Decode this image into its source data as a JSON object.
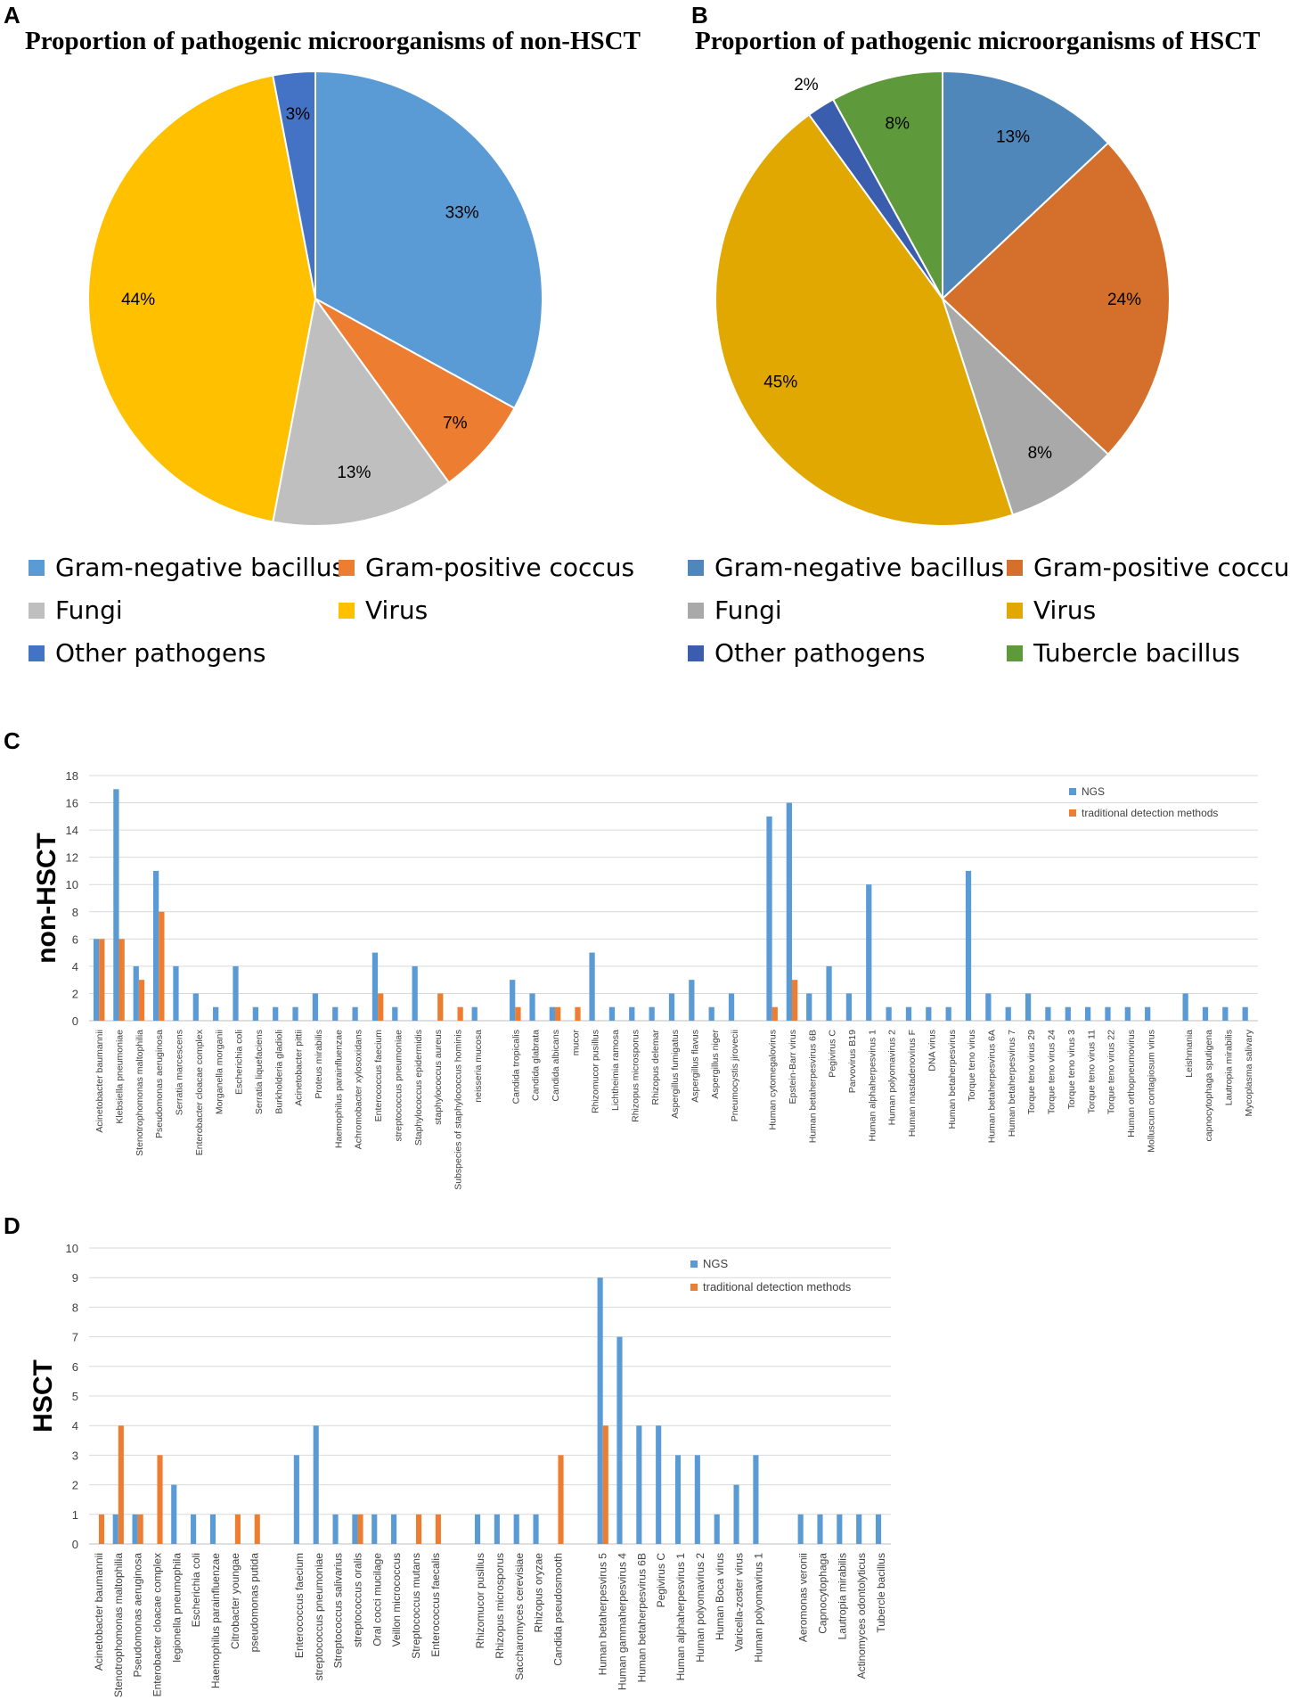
{
  "panels": {
    "a": "A",
    "b": "B",
    "c": "C",
    "d": "D"
  },
  "chart_data": [
    {
      "id": "A",
      "type": "pie",
      "title": "Proportion of pathogenic microorganisms of non-HSCT",
      "slices": [
        {
          "label": "Gram-negative bacillus",
          "value": 33,
          "display": "33%",
          "color": "#5B9BD5"
        },
        {
          "label": "Gram-positive coccus",
          "value": 7,
          "display": "7%",
          "color": "#ED7D31"
        },
        {
          "label": "Fungi",
          "value": 13,
          "display": "13%",
          "color": "#BFBFBF"
        },
        {
          "label": "Virus",
          "value": 44,
          "display": "44%",
          "color": "#FFC000"
        },
        {
          "label": "Other pathogens",
          "value": 3,
          "display": "3%",
          "color": "#4472C4"
        }
      ],
      "legend": [
        {
          "label": "Gram-negative bacillus",
          "color": "#5B9BD5"
        },
        {
          "label": "Gram-positive coccus",
          "color": "#ED7D31"
        },
        {
          "label": "Fungi",
          "color": "#BFBFBF"
        },
        {
          "label": "Virus",
          "color": "#FFC000"
        },
        {
          "label": "Other pathogens",
          "color": "#4472C4"
        }
      ]
    },
    {
      "id": "B",
      "type": "pie",
      "title": "Proportion of pathogenic microorganisms of HSCT",
      "slices": [
        {
          "label": "Gram-negative bacillus",
          "value": 13,
          "display": "13%",
          "color": "#4F87BB"
        },
        {
          "label": "Gram-positive coccus",
          "value": 24,
          "display": "24%",
          "color": "#D4702C"
        },
        {
          "label": "Fungi",
          "value": 8,
          "display": "8%",
          "color": "#A9A9A9"
        },
        {
          "label": "Virus",
          "value": 45,
          "display": "45%",
          "color": "#E0A800"
        },
        {
          "label": "Other pathogens",
          "value": 2,
          "display": "2%",
          "color": "#3A5DAE"
        },
        {
          "label": "Tubercle bacillus",
          "value": 8,
          "display": "8%",
          "color": "#5E9A3C"
        }
      ],
      "legend": [
        {
          "label": "Gram-negative bacillus",
          "color": "#4F87BB"
        },
        {
          "label": "Gram-positive coccus",
          "color": "#D4702C"
        },
        {
          "label": "Fungi",
          "color": "#A9A9A9"
        },
        {
          "label": "Virus",
          "color": "#E0A800"
        },
        {
          "label": "Other pathogens",
          "color": "#3A5DAE"
        },
        {
          "label": "Tubercle bacillus",
          "color": "#5E9A3C"
        }
      ]
    },
    {
      "id": "C",
      "type": "bar",
      "ylabel": "non-HSCT",
      "ylim": [
        0,
        18
      ],
      "yticks": [
        0,
        2,
        4,
        6,
        8,
        10,
        12,
        14,
        16,
        18
      ],
      "series_names": [
        "NGS",
        "traditional detection methods"
      ],
      "series_colors": [
        "#5B9BD5",
        "#ED7D31"
      ],
      "legend_position": "top-right",
      "groups": [
        {
          "items": [
            [
              "Acinetobacter baumannii",
              6,
              6
            ],
            [
              "Klebsiella pneumoniae",
              17,
              6
            ],
            [
              "Stenotrophomonas maltophilia",
              4,
              3
            ],
            [
              "Pseudomonas aeruginosa",
              11,
              8
            ],
            [
              "Serratia marcescens",
              4,
              0
            ],
            [
              "Enterobacter cloacae complex",
              2,
              0
            ],
            [
              "Morganella morganii",
              1,
              0
            ],
            [
              "Escherichia coli",
              4,
              0
            ],
            [
              "Serratia liquefaciens",
              1,
              0
            ],
            [
              "Burkholderia gladioli",
              1,
              0
            ],
            [
              "Acinetobacter pittii",
              1,
              0
            ],
            [
              "Proteus mirabilis",
              2,
              0
            ],
            [
              "Haemophilus parainfluenzae",
              1,
              0
            ],
            [
              "Achromobacter xylosoxidans",
              1,
              0
            ],
            [
              "Enterococcus faecium",
              5,
              2
            ],
            [
              "streptococcus pneumoniae",
              1,
              0
            ],
            [
              "Staphylococcus epidermidis",
              4,
              0
            ],
            [
              "staphylococcus aureus",
              0,
              2
            ],
            [
              "Subspecies of staphylococcus hominis",
              0,
              1
            ],
            [
              "neisseria mucosa",
              1,
              0
            ]
          ]
        },
        {
          "items": [
            [
              "Candida tropicalis",
              3,
              1
            ],
            [
              "Candida glabrata",
              2,
              0
            ],
            [
              "Candida albicans",
              1,
              1
            ],
            [
              "mucor",
              0,
              1
            ],
            [
              "Rhizomucor pusillus",
              5,
              0
            ],
            [
              "Lichtheimia ramosa",
              1,
              0
            ],
            [
              "Rhizopus microsporus",
              1,
              0
            ],
            [
              "Rhizopus delemar",
              1,
              0
            ],
            [
              "Aspergillus fumigatus",
              2,
              0
            ],
            [
              "Aspergillus flavus",
              3,
              0
            ],
            [
              "Aspergillus niger",
              1,
              0
            ],
            [
              "Pneumocystis jirovecii",
              2,
              0
            ]
          ]
        },
        {
          "items": [
            [
              "Human cytomegalovirus",
              15,
              1
            ],
            [
              "Epstein-Barr virus",
              16,
              3
            ],
            [
              "Human betaherpesvirus 6B",
              2,
              0
            ],
            [
              "Pegivirus C",
              4,
              0
            ],
            [
              "Parvovirus B19",
              2,
              0
            ],
            [
              "Human alphaherpesvirus 1",
              10,
              0
            ],
            [
              "Human polyomavirus 2",
              1,
              0
            ],
            [
              "Human mastadenovirus F",
              1,
              0
            ],
            [
              "DNA virus",
              1,
              0
            ],
            [
              "Human betaherpesvirus",
              1,
              0
            ],
            [
              "Torque teno virus",
              11,
              0
            ],
            [
              "Human betaherpesvirus 6A",
              2,
              0
            ],
            [
              "Human betaherpesvirus 7",
              1,
              0
            ],
            [
              "Torque teno virus 29",
              2,
              0
            ],
            [
              "Torque teno virus 24",
              1,
              0
            ],
            [
              "Torque teno virus 3",
              1,
              0
            ],
            [
              "Torque teno virus 11",
              1,
              0
            ],
            [
              "Torque teno virus 22",
              1,
              0
            ],
            [
              "Human orthopneumovirus",
              1,
              0
            ],
            [
              "Molluscum contagiosum virus",
              1,
              0
            ]
          ]
        },
        {
          "items": [
            [
              "Leishmania",
              2,
              0
            ],
            [
              "capnocytophaga sputigena",
              1,
              0
            ],
            [
              "Lautropia mirabilis",
              1,
              0
            ],
            [
              "Mycoplasma salivary",
              1,
              0
            ]
          ]
        }
      ]
    },
    {
      "id": "D",
      "type": "bar",
      "ylabel": "HSCT",
      "ylim": [
        0,
        10
      ],
      "yticks": [
        0,
        1,
        2,
        3,
        4,
        5,
        6,
        7,
        8,
        9,
        10
      ],
      "series_names": [
        "NGS",
        "traditional detection methods"
      ],
      "series_colors": [
        "#5B9BD5",
        "#ED7D31"
      ],
      "legend_position": "top-center",
      "groups": [
        {
          "items": [
            [
              "Acinetobacter baumannii",
              0,
              1
            ],
            [
              "Stenotrophomonas maltophilia",
              1,
              4
            ],
            [
              "Pseudomonas aeruginosa",
              1,
              1
            ],
            [
              "Enterobacter cloacae complex",
              0,
              3
            ],
            [
              "legionella pneumophila",
              2,
              0
            ],
            [
              "Escherichia coli",
              1,
              0
            ],
            [
              "Haemophilus parainfluenzae",
              1,
              0
            ],
            [
              "Citrobacter youngae",
              0,
              1
            ],
            [
              "pseudomonas putida",
              0,
              1
            ]
          ]
        },
        {
          "items": [
            [
              "Enterococcus faecium",
              3,
              0
            ],
            [
              "streptococcus pneumoniae",
              4,
              0
            ],
            [
              "Streptococcus salivarius",
              1,
              0
            ],
            [
              "streptococcus oralis",
              1,
              1
            ],
            [
              "Oral cocci mucilage",
              1,
              0
            ],
            [
              "Veillon micrococcus",
              1,
              0
            ],
            [
              "Streptococcus mutans",
              0,
              1
            ],
            [
              "Enterococcus faecalis",
              0,
              1
            ]
          ]
        },
        {
          "items": [
            [
              "Rhizomucor pusillus",
              1,
              0
            ],
            [
              "Rhizopus microsporus",
              1,
              0
            ],
            [
              "Saccharomyces cerevisiae",
              1,
              0
            ],
            [
              "Rhizopus oryzae",
              1,
              0
            ],
            [
              "Candida pseudosmooth",
              0,
              3
            ]
          ]
        },
        {
          "items": [
            [
              "Human betaherpesvirus 5",
              9,
              4
            ],
            [
              "Human gammaherpesvirus 4",
              7,
              0
            ],
            [
              "Human betaherpesvirus 6B",
              4,
              0
            ],
            [
              "Pegivirus C",
              4,
              0
            ],
            [
              "Human alphaherpesvirus 1",
              3,
              0
            ],
            [
              "Human polyomavirus 2",
              3,
              0
            ],
            [
              "Human Boca virus",
              1,
              0
            ],
            [
              "Varicella-zoster virus",
              2,
              0
            ],
            [
              "Human polyomavirus 1",
              3,
              0
            ]
          ]
        },
        {
          "items": [
            [
              "Aeromonas veronii",
              1,
              0
            ],
            [
              "Capnocytophaga",
              1,
              0
            ],
            [
              "Lautropia mirabilis",
              1,
              0
            ],
            [
              "Actinomyces odontolyticus",
              1,
              0
            ],
            [
              "Tubercle bacillus",
              1,
              0
            ]
          ]
        }
      ]
    }
  ]
}
